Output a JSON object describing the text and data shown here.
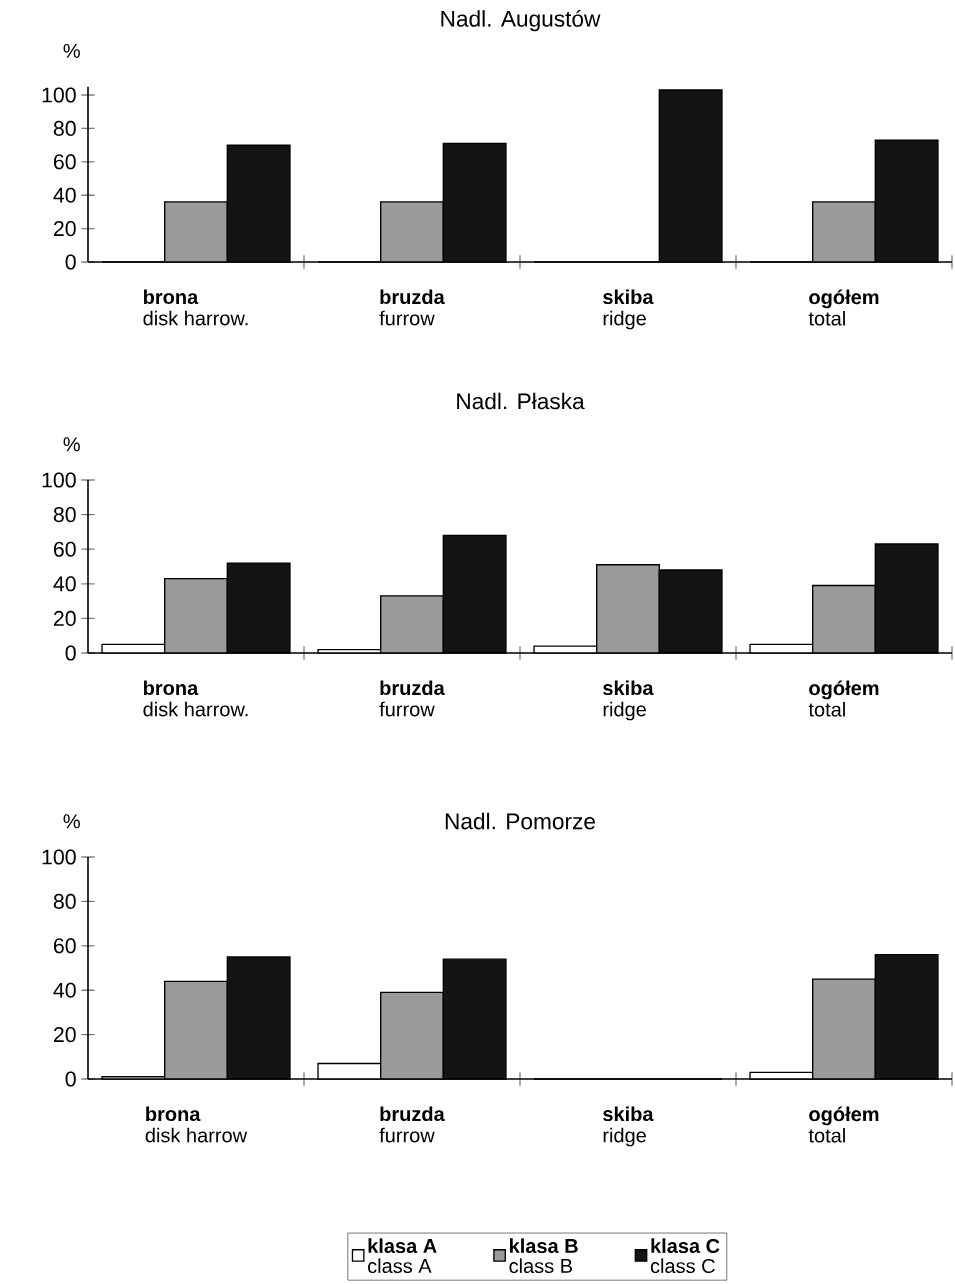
{
  "chart_data": [
    {
      "type": "bar",
      "title": "Nadl. Augustów",
      "ylabel": "%",
      "categories": [
        "**brona**\ndisk harrow.",
        "**bruzda**\nfurrow",
        "**skiba**\nridge",
        "**ogółem**\ntotal"
      ],
      "ylim": [
        0,
        105
      ],
      "yticks": [
        0,
        20,
        40,
        60,
        80,
        100
      ],
      "series": [
        {
          "color": "#ffffff",
          "values": [
            0,
            0,
            0,
            0
          ]
        },
        {
          "color": "#9a9a9a",
          "values": [
            36,
            36,
            0,
            36
          ]
        },
        {
          "color": "#141414",
          "values": [
            70,
            71,
            103,
            73
          ]
        }
      ]
    },
    {
      "type": "bar",
      "title": "Nadl. Płaska",
      "ylabel": "%",
      "categories": [
        "**brona**\ndisk harrow.",
        "**bruzda**\nfurrow",
        "**skiba**\nridge",
        "**ogółem**\ntotal"
      ],
      "ylim": [
        0,
        100
      ],
      "yticks": [
        0,
        20,
        40,
        60,
        80,
        100
      ],
      "series": [
        {
          "color": "#ffffff",
          "values": [
            5,
            2,
            4,
            5
          ]
        },
        {
          "color": "#9a9a9a",
          "values": [
            43,
            33,
            51,
            39
          ]
        },
        {
          "color": "#141414",
          "values": [
            52,
            68,
            48,
            63
          ]
        }
      ]
    },
    {
      "type": "bar",
      "title": "Nadl. Pomorze",
      "ylabel": "%",
      "categories": [
        "**brona**\ndisk harrow",
        "**bruzda**\nfurrow",
        "**skiba**\nridge",
        "**ogółem**\ntotal"
      ],
      "ylim": [
        0,
        100
      ],
      "yticks": [
        0,
        20,
        40,
        60,
        80,
        100
      ],
      "legend": "bottom",
      "series": [
        {
          "name": "**klasa A**\nclass A",
          "color": "#ffffff",
          "values": [
            1,
            7,
            0,
            3
          ]
        },
        {
          "name": "**klasa B**\nclass B",
          "color": "#9a9a9a",
          "values": [
            44,
            39,
            0,
            45
          ]
        },
        {
          "name": "**klasa C**\nclass C",
          "color": "#141414",
          "values": [
            55,
            54,
            0,
            56
          ]
        }
      ]
    }
  ]
}
